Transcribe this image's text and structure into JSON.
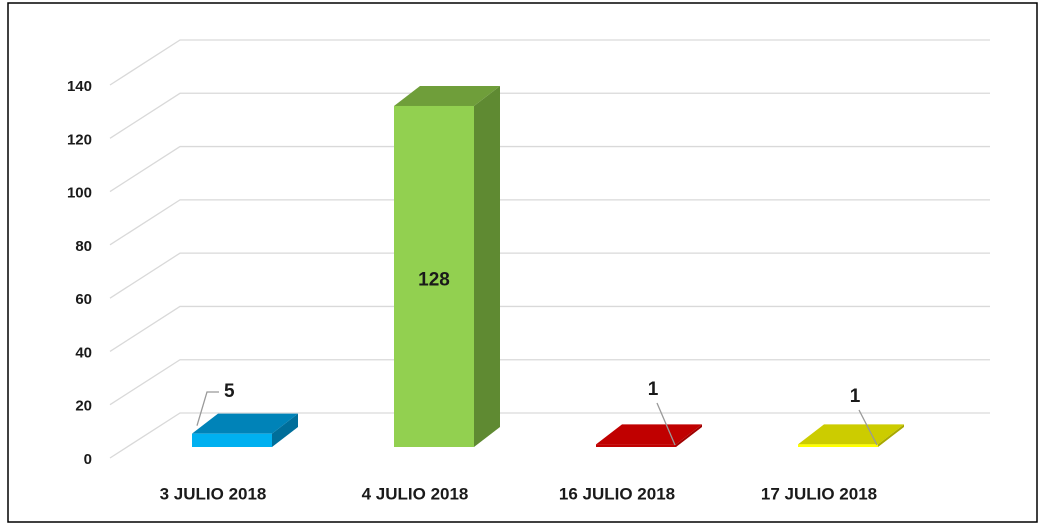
{
  "chart_data": {
    "type": "bar3d",
    "categories": [
      "3 JULIO 2018",
      "4 JULIO 2018",
      "16 JULIO 2018",
      "17 JULIO 2018"
    ],
    "values": [
      5,
      128,
      1,
      1
    ],
    "colors": [
      "#00b0f0",
      "#92d050",
      "#c00000",
      "#ffff00"
    ],
    "top_colors": [
      "#0083b8",
      "#6f9e3a",
      "#c00000",
      "#cccc00"
    ],
    "side_colors": [
      "#006e9a",
      "#5f8a32",
      "#a00000",
      "#a8a800"
    ],
    "ylim": [
      0,
      140
    ],
    "yticks": [
      0,
      20,
      40,
      60,
      80,
      100,
      120,
      140
    ],
    "grid": true
  }
}
